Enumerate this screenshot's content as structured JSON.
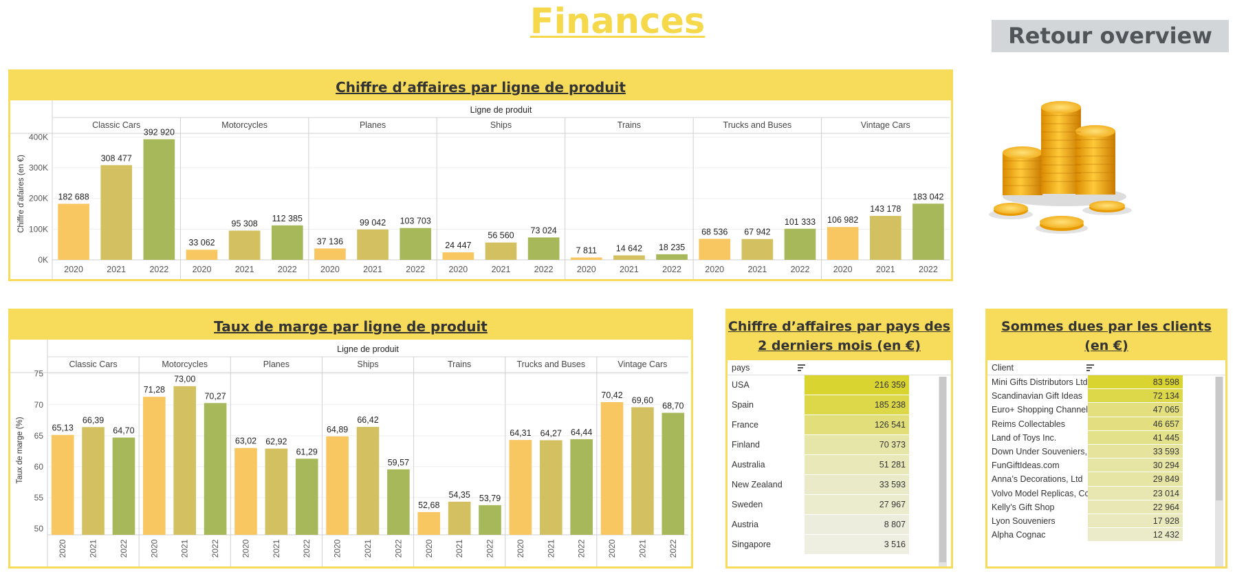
{
  "page": {
    "title": "Finances",
    "back_button": "Retour overview"
  },
  "colors": {
    "y2020": "#f8c762",
    "y2021": "#d2c061",
    "y2022": "#a7b85a",
    "header": "#f7dc5b",
    "title": "#f5d94a"
  },
  "revenue_panel": {
    "title": "Chiffre d’affaires par ligne de produit"
  },
  "margin_panel": {
    "title": "Taux de marge par ligne de produit"
  },
  "country_table": {
    "title": "Chiffre d’affaires par pays des 2 derniers mois (en €)",
    "column": "pays"
  },
  "client_table": {
    "title": "Sommes dues par les clients (en €)",
    "column": "Client"
  },
  "images": {
    "coins_icon": "gold-coins-icon"
  },
  "chart_data": [
    {
      "type": "bar",
      "title": "Chiffre d’affaires par ligne de produit",
      "group_label": "Ligne de produit",
      "ylabel": "Chiffre d’afaires (en €)",
      "ylim": [
        0,
        430000
      ],
      "yticks": [
        0,
        100000,
        200000,
        300000,
        400000
      ],
      "ytick_labels": [
        "0K",
        "100K",
        "200K",
        "300K",
        "400K"
      ],
      "groups": [
        "Classic Cars",
        "Motorcycles",
        "Planes",
        "Ships",
        "Trains",
        "Trucks and Buses",
        "Vintage Cars"
      ],
      "years": [
        "2020",
        "2021",
        "2022"
      ],
      "values": [
        [
          182688,
          308477,
          392920
        ],
        [
          33062,
          95308,
          112385
        ],
        [
          37136,
          99042,
          103703
        ],
        [
          24447,
          56560,
          73024
        ],
        [
          7811,
          14642,
          18235
        ],
        [
          68536,
          67942,
          101333
        ],
        [
          106982,
          143178,
          183042
        ]
      ],
      "labels": [
        [
          "182 688",
          "308 477",
          "392 920"
        ],
        [
          "33 062",
          "95 308",
          "112 385"
        ],
        [
          "37 136",
          "99 042",
          "103 703"
        ],
        [
          "24 447",
          "56 560",
          "73 024"
        ],
        [
          "7 811",
          "14 642",
          "18 235"
        ],
        [
          "68 536",
          "67 942",
          "101 333"
        ],
        [
          "106 982",
          "143 178",
          "183 042"
        ]
      ]
    },
    {
      "type": "bar",
      "title": "Taux de marge par ligne de produit",
      "group_label": "Ligne de produit",
      "ylabel": "Taux de marge (%)",
      "ylim": [
        49,
        76.3
      ],
      "yticks": [
        50,
        55,
        60,
        65,
        70,
        75
      ],
      "ytick_labels": [
        "50",
        "55",
        "60",
        "65",
        "70",
        "75"
      ],
      "groups": [
        "Classic Cars",
        "Motorcycles",
        "Planes",
        "Ships",
        "Trains",
        "Trucks and Buses",
        "Vintage Cars"
      ],
      "years": [
        "2020",
        "2021",
        "2022"
      ],
      "values": [
        [
          65.13,
          66.39,
          64.7
        ],
        [
          71.28,
          73.0,
          70.27
        ],
        [
          63.02,
          62.92,
          61.29
        ],
        [
          64.89,
          66.42,
          59.57
        ],
        [
          52.68,
          54.35,
          53.79
        ],
        [
          64.31,
          64.27,
          64.44
        ],
        [
          70.42,
          69.6,
          68.7
        ]
      ],
      "labels": [
        [
          "65,13",
          "66,39",
          "64,70"
        ],
        [
          "71,28",
          "73,00",
          "70,27"
        ],
        [
          "63,02",
          "62,92",
          "61,29"
        ],
        [
          "64,89",
          "66,42",
          "59,57"
        ],
        [
          "52,68",
          "54,35",
          "53,79"
        ],
        [
          "64,31",
          "64,27",
          "64,44"
        ],
        [
          "70,42",
          "69,60",
          "68,70"
        ]
      ]
    },
    {
      "type": "table",
      "title": "Chiffre d’affaires par pays des 2 derniers mois (en €)",
      "column": "pays",
      "rows": [
        {
          "label": "USA",
          "value": 216359,
          "text": "216 359"
        },
        {
          "label": "Spain",
          "value": 185238,
          "text": "185 238"
        },
        {
          "label": "France",
          "value": 126541,
          "text": "126 541"
        },
        {
          "label": "Finland",
          "value": 70373,
          "text": "70 373"
        },
        {
          "label": "Australia",
          "value": 51281,
          "text": "51 281"
        },
        {
          "label": "New Zealand",
          "value": 33593,
          "text": "33 593"
        },
        {
          "label": "Sweden",
          "value": 27967,
          "text": "27 967"
        },
        {
          "label": "Austria",
          "value": 8807,
          "text": "8 807"
        },
        {
          "label": "Singapore",
          "value": 3516,
          "text": "3 516"
        }
      ]
    },
    {
      "type": "table",
      "title": "Sommes dues par les clients (en €)",
      "column": "Client",
      "rows": [
        {
          "label": "Mini Gifts Distributors Ltd.",
          "value": 83598,
          "text": "83 598"
        },
        {
          "label": "Scandinavian Gift Ideas",
          "value": 72134,
          "text": "72 134"
        },
        {
          "label": "Euro+ Shopping Channel",
          "value": 47065,
          "text": "47 065"
        },
        {
          "label": "Reims Collectables",
          "value": 46657,
          "text": "46 657"
        },
        {
          "label": "Land of Toys Inc.",
          "value": 41445,
          "text": "41 445"
        },
        {
          "label": "Down Under Souveniers, Inc",
          "value": 33593,
          "text": "33 593"
        },
        {
          "label": "FunGiftIdeas.com",
          "value": 30294,
          "text": "30 294"
        },
        {
          "label": "Anna’s Decorations, Ltd",
          "value": 29849,
          "text": "29 849"
        },
        {
          "label": "Volvo Model Replicas, Co",
          "value": 23014,
          "text": "23 014"
        },
        {
          "label": "Kelly’s Gift Shop",
          "value": 22964,
          "text": "22 964"
        },
        {
          "label": "Lyon Souveniers",
          "value": 17928,
          "text": "17 928"
        },
        {
          "label": "Alpha Cognac",
          "value": 12432,
          "text": "12 432"
        }
      ]
    }
  ]
}
